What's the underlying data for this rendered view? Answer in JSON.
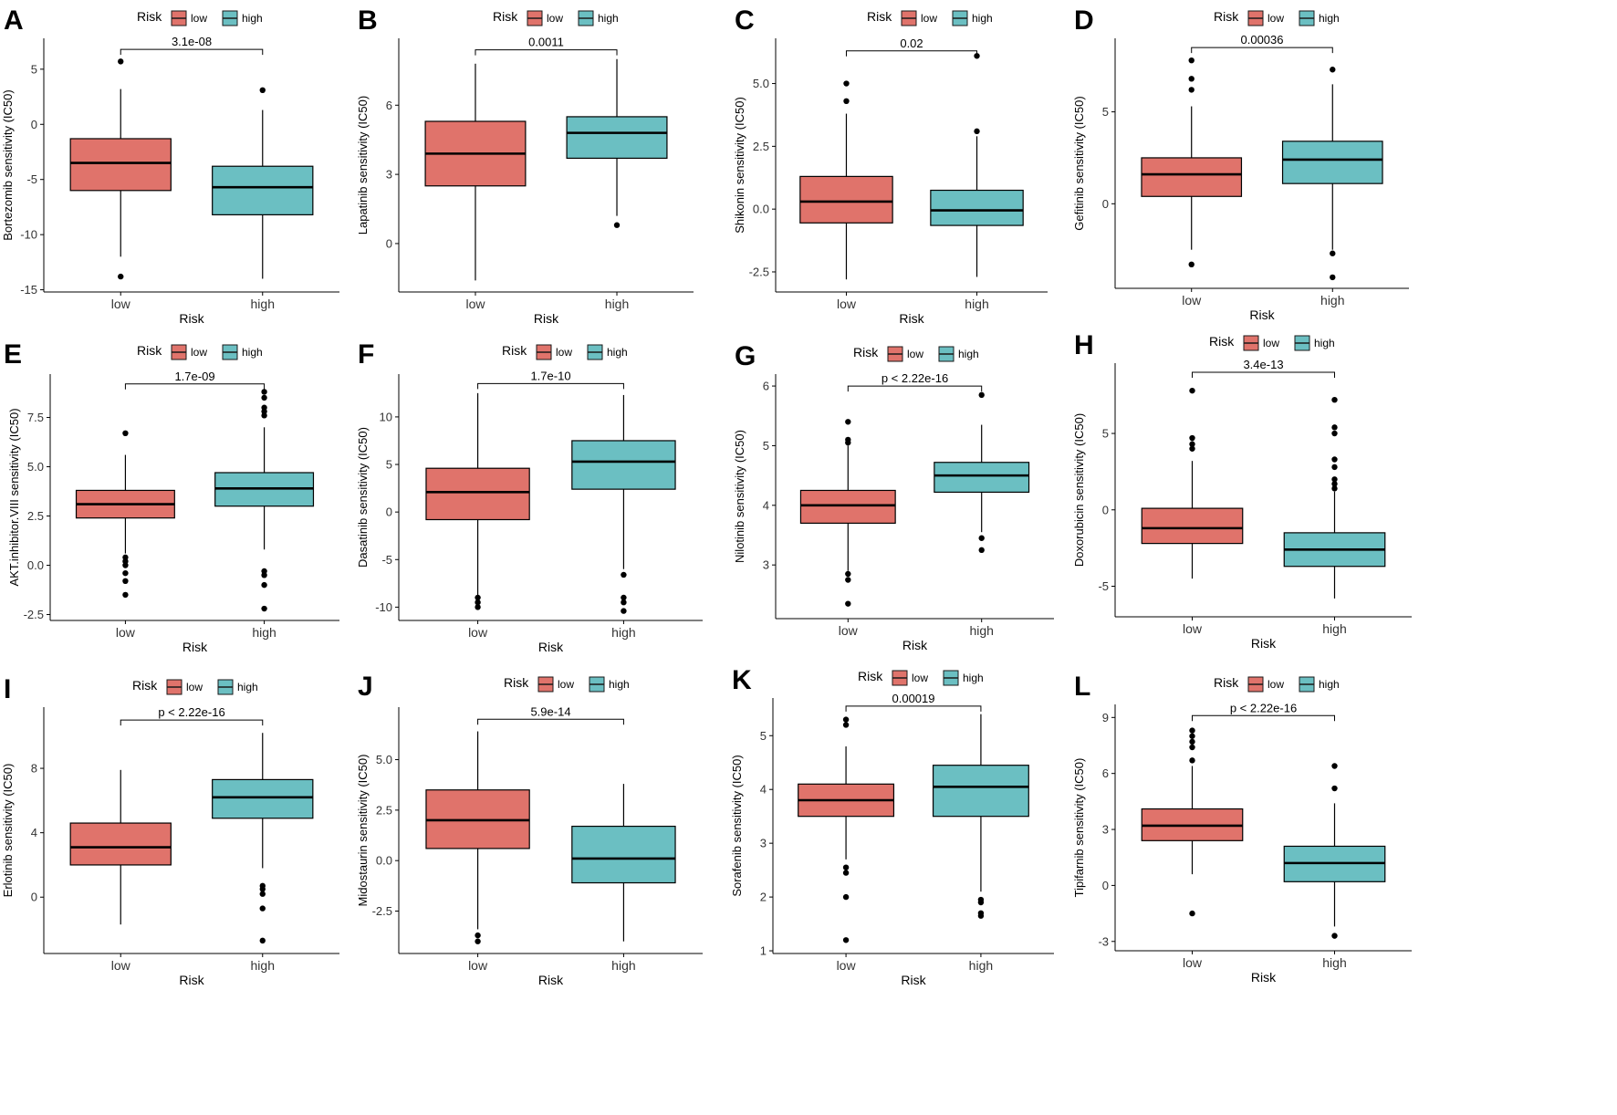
{
  "colors": {
    "low": "#E0736B",
    "high": "#6BBFC2",
    "stroke": "#1a1a1a"
  },
  "chart_data": [
    {
      "type": "box",
      "panel": "A",
      "ylabel": "Bortezomib sensitivity (IC50)",
      "xlabel": "Risk",
      "legend_title": "Risk",
      "legend_position": "top",
      "categories": [
        "low",
        "high"
      ],
      "legend_labels": [
        "low",
        "high"
      ],
      "ylim": [
        -15.2,
        7.8
      ],
      "yticks": [
        5,
        0,
        -5,
        -10,
        -15
      ],
      "ytick_labels": [
        "5",
        "0",
        "-5",
        "-10",
        "-15"
      ],
      "pvalue": "3.1e-08",
      "bracket_y": 6.8,
      "boxes": [
        {
          "q1": -6.0,
          "median": -3.5,
          "q3": -1.3,
          "whisker_low": -12.0,
          "whisker_high": 3.2,
          "outliers": [
            5.7,
            -13.8
          ]
        },
        {
          "q1": -8.2,
          "median": -5.7,
          "q3": -3.8,
          "whisker_low": -14.0,
          "whisker_high": 1.3,
          "outliers": [
            3.1
          ]
        }
      ]
    },
    {
      "type": "box",
      "panel": "B",
      "ylabel": "Lapatinib sensitivity (IC50)",
      "xlabel": "Risk",
      "legend_title": "Risk",
      "legend_position": "top",
      "categories": [
        "low",
        "high"
      ],
      "legend_labels": [
        "low",
        "high"
      ],
      "ylim": [
        -2.1,
        8.9
      ],
      "yticks": [
        6,
        3,
        0
      ],
      "ytick_labels": [
        "6",
        "3",
        "0"
      ],
      "pvalue": "0.0011",
      "bracket_y": 8.4,
      "boxes": [
        {
          "q1": 2.5,
          "median": 3.9,
          "q3": 5.3,
          "whisker_low": -1.6,
          "whisker_high": 7.8,
          "outliers": []
        },
        {
          "q1": 3.7,
          "median": 4.8,
          "q3": 5.5,
          "whisker_low": 1.2,
          "whisker_high": 8.0,
          "outliers": [
            0.8
          ]
        }
      ]
    },
    {
      "type": "box",
      "panel": "C",
      "ylabel": "Shikonin sensitivity (IC50)",
      "xlabel": "Risk",
      "legend_title": "Risk",
      "legend_position": "top",
      "categories": [
        "low",
        "high"
      ],
      "legend_labels": [
        "low",
        "high"
      ],
      "ylim": [
        -3.3,
        6.8
      ],
      "yticks": [
        5,
        2.5,
        0,
        -2.5
      ],
      "ytick_labels": [
        "5.0",
        "2.5",
        "0.0",
        "-2.5"
      ],
      "pvalue": "0.02",
      "bracket_y": 6.3,
      "boxes": [
        {
          "q1": -0.55,
          "median": 0.3,
          "q3": 1.3,
          "whisker_low": -2.8,
          "whisker_high": 3.8,
          "outliers": [
            5.0,
            4.3
          ]
        },
        {
          "q1": -0.65,
          "median": -0.05,
          "q3": 0.75,
          "whisker_low": -2.7,
          "whisker_high": 2.9,
          "outliers": [
            6.1,
            3.1
          ]
        }
      ]
    },
    {
      "type": "box",
      "panel": "D",
      "ylabel": "Gefitinib sensitivity (IC50)",
      "xlabel": "Risk",
      "legend_title": "Risk",
      "legend_position": "top",
      "categories": [
        "low",
        "high"
      ],
      "legend_labels": [
        "low",
        "high"
      ],
      "ylim": [
        -4.6,
        9.0
      ],
      "yticks": [
        5,
        0
      ],
      "ytick_labels": [
        "5",
        "0"
      ],
      "pvalue": "0.00036",
      "bracket_y": 8.5,
      "boxes": [
        {
          "q1": 0.4,
          "median": 1.6,
          "q3": 2.5,
          "whisker_low": -2.5,
          "whisker_high": 5.3,
          "outliers": [
            7.8,
            6.8,
            6.2,
            -3.3
          ]
        },
        {
          "q1": 1.1,
          "median": 2.4,
          "q3": 3.4,
          "whisker_low": -2.5,
          "whisker_high": 6.5,
          "outliers": [
            7.3,
            -2.7,
            -4.0
          ]
        }
      ]
    },
    {
      "type": "box",
      "panel": "E",
      "ylabel": "AKT.inhibitor.VIII sensitivity (IC50)",
      "xlabel": "Risk",
      "legend_title": "Risk",
      "legend_position": "top",
      "categories": [
        "low",
        "high"
      ],
      "legend_labels": [
        "low",
        "high"
      ],
      "ylim": [
        -2.8,
        9.7
      ],
      "yticks": [
        7.5,
        5,
        2.5,
        0,
        -2.5
      ],
      "ytick_labels": [
        "7.5",
        "5.0",
        "2.5",
        "0.0",
        "-2.5"
      ],
      "pvalue": "1.7e-09",
      "bracket_y": 9.2,
      "boxes": [
        {
          "q1": 2.4,
          "median": 3.1,
          "q3": 3.8,
          "whisker_low": 0.6,
          "whisker_high": 5.6,
          "outliers": [
            6.7,
            0.4,
            0.2,
            0.0,
            -0.4,
            -0.8,
            -1.5
          ]
        },
        {
          "q1": 3.0,
          "median": 3.9,
          "q3": 4.7,
          "whisker_low": 0.8,
          "whisker_high": 7.0,
          "outliers": [
            8.8,
            8.5,
            8.0,
            7.8,
            7.6,
            -0.3,
            -0.5,
            -1.0,
            -2.2
          ]
        }
      ]
    },
    {
      "type": "box",
      "panel": "F",
      "ylabel": "Dasatinib sensitivity (IC50)",
      "xlabel": "Risk",
      "legend_title": "Risk",
      "legend_position": "top",
      "categories": [
        "low",
        "high"
      ],
      "legend_labels": [
        "low",
        "high"
      ],
      "ylim": [
        -11.4,
        14.5
      ],
      "yticks": [
        10,
        5,
        0,
        -5,
        -10
      ],
      "ytick_labels": [
        "10",
        "5",
        "0",
        "-5",
        "-10"
      ],
      "pvalue": "1.7e-10",
      "bracket_y": 13.5,
      "boxes": [
        {
          "q1": -0.8,
          "median": 2.1,
          "q3": 4.6,
          "whisker_low": -8.8,
          "whisker_high": 12.5,
          "outliers": [
            -9.0,
            -9.5,
            -10.0
          ]
        },
        {
          "q1": 2.4,
          "median": 5.3,
          "q3": 7.5,
          "whisker_low": -6.0,
          "whisker_high": 12.3,
          "outliers": [
            -6.6,
            -9.0,
            -9.5,
            -10.4
          ]
        }
      ]
    },
    {
      "type": "box",
      "panel": "G",
      "ylabel": "Nilotinib sensitivity (IC50)",
      "xlabel": "Risk",
      "legend_title": "Risk",
      "legend_position": "top",
      "categories": [
        "low",
        "high"
      ],
      "legend_labels": [
        "low",
        "high"
      ],
      "ylim": [
        2.1,
        6.2
      ],
      "yticks": [
        6,
        5,
        4,
        3
      ],
      "ytick_labels": [
        "6",
        "5",
        "4",
        "3"
      ],
      "pvalue": "p < 2.22e-16",
      "bracket_y": 6.0,
      "boxes": [
        {
          "q1": 3.7,
          "median": 4.0,
          "q3": 4.25,
          "whisker_low": 2.9,
          "whisker_high": 5.0,
          "outliers": [
            5.4,
            5.1,
            5.05,
            2.85,
            2.75,
            2.35
          ]
        },
        {
          "q1": 4.22,
          "median": 4.5,
          "q3": 4.72,
          "whisker_low": 3.55,
          "whisker_high": 5.35,
          "outliers": [
            5.85,
            3.45,
            3.25
          ]
        }
      ]
    },
    {
      "type": "box",
      "panel": "H",
      "ylabel": "Doxorubicin sensitivity (IC50)",
      "xlabel": "Risk",
      "legend_title": "Risk",
      "legend_position": "top",
      "categories": [
        "low",
        "high"
      ],
      "legend_labels": [
        "low",
        "high"
      ],
      "ylim": [
        -7.0,
        9.6
      ],
      "yticks": [
        5,
        0,
        -5
      ],
      "ytick_labels": [
        "5",
        "0",
        "-5"
      ],
      "pvalue": "3.4e-13",
      "bracket_y": 9.0,
      "boxes": [
        {
          "q1": -2.2,
          "median": -1.2,
          "q3": 0.1,
          "whisker_low": -4.5,
          "whisker_high": 3.2,
          "outliers": [
            7.8,
            4.7,
            4.3,
            4.0
          ]
        },
        {
          "q1": -3.7,
          "median": -2.6,
          "q3": -1.5,
          "whisker_low": -5.8,
          "whisker_high": 1.2,
          "outliers": [
            7.2,
            5.4,
            5.0,
            3.3,
            2.8,
            2.0,
            1.7,
            1.4
          ]
        }
      ]
    },
    {
      "type": "box",
      "panel": "I",
      "ylabel": "Erlotinib sensitivity (IC50)",
      "xlabel": "Risk",
      "legend_title": "Risk",
      "legend_position": "top",
      "categories": [
        "low",
        "high"
      ],
      "legend_labels": [
        "low",
        "high"
      ],
      "ylim": [
        -3.5,
        11.8
      ],
      "yticks": [
        8,
        4,
        0
      ],
      "ytick_labels": [
        "8",
        "4",
        "0"
      ],
      "pvalue": "p < 2.22e-16",
      "bracket_y": 11.0,
      "boxes": [
        {
          "q1": 2.0,
          "median": 3.1,
          "q3": 4.6,
          "whisker_low": -1.7,
          "whisker_high": 7.9,
          "outliers": []
        },
        {
          "q1": 4.9,
          "median": 6.2,
          "q3": 7.3,
          "whisker_low": 1.8,
          "whisker_high": 10.2,
          "outliers": [
            0.7,
            0.5,
            0.2,
            -0.7,
            -2.7
          ]
        }
      ]
    },
    {
      "type": "box",
      "panel": "J",
      "ylabel": "Midostaurin sensitivity (IC50)",
      "xlabel": "Risk",
      "legend_title": "Risk",
      "legend_position": "top",
      "categories": [
        "low",
        "high"
      ],
      "legend_labels": [
        "low",
        "high"
      ],
      "ylim": [
        -4.6,
        7.6
      ],
      "yticks": [
        5,
        2.5,
        0,
        -2.5
      ],
      "ytick_labels": [
        "5.0",
        "2.5",
        "0.0",
        "-2.5"
      ],
      "pvalue": "5.9e-14",
      "bracket_y": 7.0,
      "boxes": [
        {
          "q1": 0.6,
          "median": 2.0,
          "q3": 3.5,
          "whisker_low": -3.4,
          "whisker_high": 6.4,
          "outliers": [
            -3.7,
            -4.0
          ]
        },
        {
          "q1": -1.1,
          "median": 0.1,
          "q3": 1.7,
          "whisker_low": -4.0,
          "whisker_high": 3.8,
          "outliers": []
        }
      ]
    },
    {
      "type": "box",
      "panel": "K",
      "ylabel": "Sorafenib sensitivity (IC50)",
      "xlabel": "Risk",
      "legend_title": "Risk",
      "legend_position": "top",
      "categories": [
        "low",
        "high"
      ],
      "legend_labels": [
        "low",
        "high"
      ],
      "ylim": [
        0.95,
        5.7
      ],
      "yticks": [
        5,
        4,
        3,
        2,
        1
      ],
      "ytick_labels": [
        "5",
        "4",
        "3",
        "2",
        "1"
      ],
      "pvalue": "0.00019",
      "bracket_y": 5.55,
      "boxes": [
        {
          "q1": 3.5,
          "median": 3.8,
          "q3": 4.1,
          "whisker_low": 2.7,
          "whisker_high": 4.8,
          "outliers": [
            5.3,
            5.2,
            2.55,
            2.45,
            2.0,
            1.2
          ]
        },
        {
          "q1": 3.5,
          "median": 4.05,
          "q3": 4.45,
          "whisker_low": 2.1,
          "whisker_high": 5.4,
          "outliers": [
            1.95,
            1.9,
            1.7,
            1.65
          ]
        }
      ]
    },
    {
      "type": "box",
      "panel": "L",
      "ylabel": "Tipifarnib sensitivity (IC50)",
      "xlabel": "Risk",
      "legend_title": "Risk",
      "legend_position": "top",
      "categories": [
        "low",
        "high"
      ],
      "legend_labels": [
        "low",
        "high"
      ],
      "ylim": [
        -3.5,
        9.7
      ],
      "yticks": [
        9,
        6,
        3,
        0,
        -3
      ],
      "ytick_labels": [
        "9",
        "6",
        "3",
        "0",
        "-3"
      ],
      "pvalue": "p < 2.22e-16",
      "bracket_y": 9.1,
      "boxes": [
        {
          "q1": 2.4,
          "median": 3.2,
          "q3": 4.1,
          "whisker_low": 0.6,
          "whisker_high": 6.4,
          "outliers": [
            8.3,
            8.0,
            7.7,
            7.4,
            6.7,
            -1.5
          ]
        },
        {
          "q1": 0.2,
          "median": 1.2,
          "q3": 2.1,
          "whisker_low": -2.2,
          "whisker_high": 4.4,
          "outliers": [
            6.4,
            5.2,
            -2.7
          ]
        }
      ]
    }
  ]
}
